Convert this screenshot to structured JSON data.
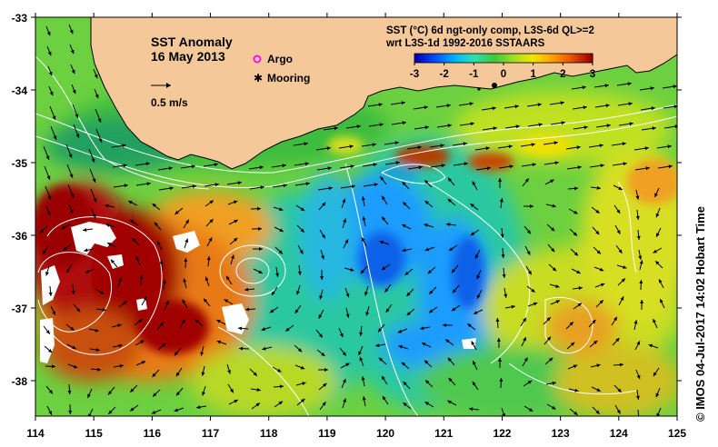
{
  "map": {
    "title": "SST Anomaly",
    "date": "16 May 2013",
    "vector_scale_label": "0.5 m/s",
    "legend": [
      {
        "label": "Argo",
        "color": "#ff00ff",
        "symbol": "circle"
      },
      {
        "label": "Mooring",
        "color": "#000000",
        "symbol": "star"
      }
    ],
    "colorbar": {
      "title_line1": "SST (°C) 6d ngt-only comp, L3S-6d QL>=2",
      "title_line2": "wrt L3S-1d 1992-2016 SSTAARS",
      "ticks": [
        "-3",
        "-2",
        "-1",
        "0",
        "1",
        "2",
        "3"
      ],
      "min": -3,
      "max": 3,
      "colors": [
        "#0000b4",
        "#0050ff",
        "#00b4ff",
        "#2fe0b0",
        "#3cc83c",
        "#a0dc28",
        "#f0e600",
        "#ffa000",
        "#e85000",
        "#a00000"
      ]
    },
    "lon_ticks": [
      "114",
      "115",
      "116",
      "117",
      "118",
      "119",
      "120",
      "121",
      "122",
      "123",
      "124",
      "125"
    ],
    "lat_ticks": [
      "-33",
      "-34",
      "-35",
      "-36",
      "-37",
      "-38"
    ],
    "credit": "© IMOS 04-Jul-2017 14:02 Hobart Time",
    "land_color": "#f5c89a",
    "missing_data_color": "#ffffff"
  }
}
